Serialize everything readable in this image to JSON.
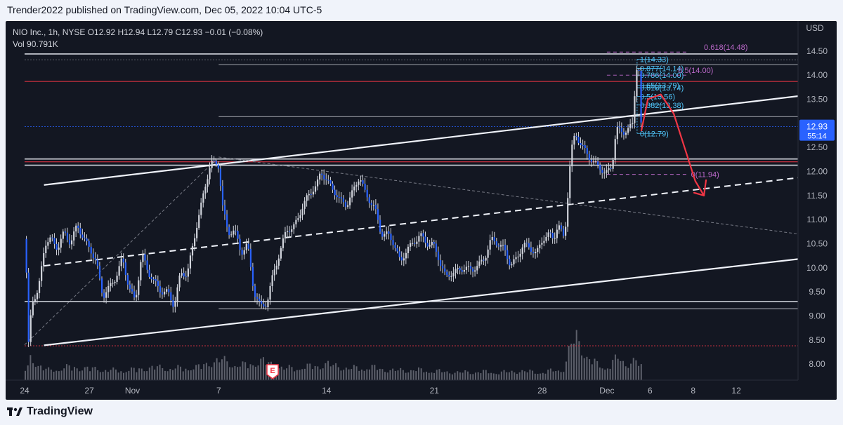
{
  "header": {
    "published": "Trender2022 published on TradingView.com, Dec 05, 2022 10:04 UTC-5"
  },
  "legend": {
    "o": "O12.92",
    "h": "H12.94",
    "l": "L12.79",
    "c": "C12.93",
    "chg": "−0.01 (−0.08%)",
    "vol_label": "Vol",
    "vol_value": "90.791K"
  },
  "footer": {
    "brand": "TradingView"
  },
  "colors": {
    "background": "#131722",
    "candle": "#d1d4dc",
    "blue_candle": "#2962ff",
    "red_level": "#f23645",
    "cyan_fib": "#4fc3f7",
    "violet_fib": "#ba68c8",
    "arrow": "#f23645",
    "price_tag": "#2962ff"
  },
  "chart_data": {
    "type": "candlestick",
    "title": "NIO Inc., 1h, NYSE",
    "ylabel": "USD",
    "ylim": [
      7.9,
      14.6
    ],
    "yticks": [
      "8.00",
      "8.50",
      "9.00",
      "9.50",
      "10.00",
      "10.50",
      "11.00",
      "11.50",
      "12.00",
      "12.50",
      "13.00",
      "13.50",
      "14.00",
      "14.50"
    ],
    "xlim": [
      0,
      45
    ],
    "xticks": [
      {
        "x": 0,
        "label": "24"
      },
      {
        "x": 3,
        "label": "27"
      },
      {
        "x": 5,
        "label": "Nov"
      },
      {
        "x": 9,
        "label": "7"
      },
      {
        "x": 14,
        "label": "14"
      },
      {
        "x": 19,
        "label": "21"
      },
      {
        "x": 24,
        "label": "28"
      },
      {
        "x": 27,
        "label": "Dec"
      },
      {
        "x": 29,
        "label": "6"
      },
      {
        "x": 31,
        "label": "8"
      },
      {
        "x": 33,
        "label": "12"
      }
    ],
    "current_price": "12.93",
    "countdown": "55:14",
    "close_path": [
      [
        0.0,
        10.6
      ],
      [
        0.15,
        8.4
      ],
      [
        0.3,
        9.3
      ],
      [
        0.6,
        9.5
      ],
      [
        0.9,
        10.5
      ],
      [
        1.2,
        10.6
      ],
      [
        1.5,
        10.4
      ],
      [
        1.8,
        10.75
      ],
      [
        2.1,
        10.5
      ],
      [
        2.4,
        10.9
      ],
      [
        2.7,
        10.6
      ],
      [
        3.0,
        10.4
      ],
      [
        3.3,
        10.1
      ],
      [
        3.6,
        9.4
      ],
      [
        3.9,
        9.6
      ],
      [
        4.2,
        9.8
      ],
      [
        4.5,
        10.2
      ],
      [
        4.8,
        9.6
      ],
      [
        5.1,
        9.3
      ],
      [
        5.4,
        10.3
      ],
      [
        5.7,
        9.9
      ],
      [
        6.0,
        9.7
      ],
      [
        6.3,
        9.5
      ],
      [
        6.6,
        9.5
      ],
      [
        6.9,
        9.2
      ],
      [
        7.2,
        9.9
      ],
      [
        7.5,
        9.85
      ],
      [
        8.0,
        11.0
      ],
      [
        8.3,
        11.6
      ],
      [
        8.6,
        12.2
      ],
      [
        9.0,
        12.1
      ],
      [
        9.1,
        11.4
      ],
      [
        9.4,
        10.7
      ],
      [
        9.7,
        10.8
      ],
      [
        10.0,
        10.3
      ],
      [
        10.3,
        10.5
      ],
      [
        10.6,
        9.5
      ],
      [
        10.9,
        9.2
      ],
      [
        11.2,
        9.25
      ],
      [
        11.5,
        9.9
      ],
      [
        11.8,
        10.3
      ],
      [
        12.1,
        10.8
      ],
      [
        12.4,
        10.8
      ],
      [
        12.8,
        11.2
      ],
      [
        13.1,
        11.5
      ],
      [
        13.5,
        11.7
      ],
      [
        13.7,
        12.0
      ],
      [
        14.0,
        11.8
      ],
      [
        14.3,
        11.6
      ],
      [
        14.6,
        11.4
      ],
      [
        14.9,
        11.3
      ],
      [
        15.2,
        11.6
      ],
      [
        15.5,
        11.9
      ],
      [
        15.8,
        11.5
      ],
      [
        16.2,
        11.25
      ],
      [
        16.5,
        10.7
      ],
      [
        16.8,
        10.7
      ],
      [
        17.1,
        10.5
      ],
      [
        17.4,
        10.1
      ],
      [
        17.7,
        10.4
      ],
      [
        18.0,
        10.5
      ],
      [
        18.3,
        10.7
      ],
      [
        18.6,
        10.5
      ],
      [
        18.9,
        10.5
      ],
      [
        19.2,
        10.15
      ],
      [
        19.5,
        9.8
      ],
      [
        19.8,
        9.9
      ],
      [
        20.1,
        9.95
      ],
      [
        20.4,
        10.0
      ],
      [
        20.7,
        9.95
      ],
      [
        21.0,
        10.05
      ],
      [
        21.3,
        10.2
      ],
      [
        21.6,
        10.6
      ],
      [
        21.9,
        10.5
      ],
      [
        22.2,
        10.4
      ],
      [
        22.5,
        10.05
      ],
      [
        22.8,
        10.2
      ],
      [
        23.1,
        10.5
      ],
      [
        23.4,
        10.4
      ],
      [
        23.7,
        10.3
      ],
      [
        24.0,
        10.6
      ],
      [
        24.3,
        10.7
      ],
      [
        24.5,
        10.6
      ],
      [
        24.7,
        10.9
      ],
      [
        25.0,
        10.6
      ],
      [
        25.3,
        12.4
      ],
      [
        25.5,
        12.8
      ],
      [
        25.7,
        12.6
      ],
      [
        26.0,
        12.4
      ],
      [
        26.3,
        12.2
      ],
      [
        26.6,
        12.1
      ],
      [
        26.9,
        11.95
      ],
      [
        27.2,
        12.1
      ],
      [
        27.4,
        12.9
      ],
      [
        27.7,
        12.8
      ],
      [
        28.0,
        12.9
      ],
      [
        28.2,
        13.0
      ],
      [
        28.3,
        14.2
      ],
      [
        28.45,
        14.1
      ],
      [
        28.5,
        13.0
      ],
      [
        28.6,
        12.93
      ]
    ],
    "volume_path": [
      [
        0.2,
        0.35
      ],
      [
        1.0,
        0.15
      ],
      [
        2.0,
        0.2
      ],
      [
        3.0,
        0.18
      ],
      [
        4.0,
        0.15
      ],
      [
        5.0,
        0.16
      ],
      [
        6.0,
        0.2
      ],
      [
        7.0,
        0.18
      ],
      [
        8.0,
        0.2
      ],
      [
        9.0,
        0.32
      ],
      [
        10.0,
        0.22
      ],
      [
        11.0,
        0.3
      ],
      [
        12.0,
        0.18
      ],
      [
        13.0,
        0.2
      ],
      [
        14.0,
        0.25
      ],
      [
        15.0,
        0.18
      ],
      [
        16.0,
        0.2
      ],
      [
        17.0,
        0.15
      ],
      [
        18.0,
        0.16
      ],
      [
        19.0,
        0.14
      ],
      [
        20.0,
        0.12
      ],
      [
        21.0,
        0.13
      ],
      [
        22.0,
        0.12
      ],
      [
        23.0,
        0.14
      ],
      [
        24.0,
        0.12
      ],
      [
        25.0,
        0.18
      ],
      [
        25.3,
        0.55
      ],
      [
        25.6,
        0.7
      ],
      [
        26.0,
        0.35
      ],
      [
        26.5,
        0.25
      ],
      [
        27.0,
        0.2
      ],
      [
        27.5,
        0.35
      ],
      [
        28.0,
        0.25
      ],
      [
        28.3,
        0.3
      ],
      [
        28.6,
        0.2
      ]
    ],
    "horizontal_levels": [
      {
        "y": 14.44,
        "color": "#d1d4dc",
        "x1": 0,
        "width": 1.6
      },
      {
        "y": 14.32,
        "color": "#787b86",
        "x1": 0,
        "width": 0.8,
        "dash": "2,2"
      },
      {
        "y": 14.22,
        "color": "#d1d4dc",
        "x1": 9.0,
        "width": 0.8
      },
      {
        "y": 13.87,
        "color": "#f23645",
        "x1": 0,
        "width": 1.0
      },
      {
        "y": 13.14,
        "color": "#d1d4dc",
        "x1": 9.0,
        "width": 0.8
      },
      {
        "y": 12.93,
        "color": "#2962ff",
        "x1": 0,
        "width": 0.8,
        "dash": "2,2"
      },
      {
        "y": 12.26,
        "color": "#d1d4dc",
        "x1": 0,
        "width": 1.6
      },
      {
        "y": 12.2,
        "color": "#f23645",
        "x1": 0,
        "width": 1.0
      },
      {
        "y": 12.13,
        "color": "#d1d4dc",
        "x1": 0,
        "width": 1.6
      },
      {
        "y": 9.3,
        "color": "#d1d4dc",
        "x1": 0,
        "width": 1.6
      },
      {
        "y": 9.15,
        "color": "#d1d4dc",
        "x1": 9.0,
        "width": 0.8
      },
      {
        "y": 8.38,
        "color": "#f23645",
        "x1": 0,
        "width": 0.8,
        "dash": "2,2"
      }
    ],
    "trend_lines": [
      {
        "x1": 0.9,
        "y1": 11.72,
        "x2": 46.0,
        "y2": 14.1,
        "style": "solid"
      },
      {
        "x1": 0.9,
        "y1": 10.04,
        "x2": 46.0,
        "y2": 12.4,
        "style": "dashed"
      },
      {
        "x1": 0.9,
        "y1": 8.39,
        "x2": 46.0,
        "y2": 10.7,
        "style": "solid"
      },
      {
        "x1": 0.0,
        "y1": 8.4,
        "x2": 9.0,
        "y2": 12.3,
        "style": "thin-dashed"
      },
      {
        "x1": 9.0,
        "y1": 12.3,
        "x2": 46.0,
        "y2": 10.1,
        "style": "thin-dashed"
      }
    ],
    "fib_cyan": {
      "x1": 28.4,
      "x2": 29.6,
      "levels": [
        {
          "y": 14.33,
          "label": "1(14.33)"
        },
        {
          "y": 14.14,
          "label": "0.877(14.14)"
        },
        {
          "y": 14.0,
          "label": "0.786(14.00)"
        },
        {
          "y": 13.79,
          "label": "0.65(13.79)"
        },
        {
          "y": 13.74,
          "label": "0.618(13.74)"
        },
        {
          "y": 13.56,
          "label": "0.5(13.56)"
        },
        {
          "y": 13.38,
          "label": "0.382(13.38)"
        },
        {
          "y": 12.79,
          "label": "0(12.79)"
        }
      ]
    },
    "fib_violet": {
      "x1": 27.0,
      "x2": 30.8,
      "levels": [
        {
          "y": 14.48,
          "label": "0.618(14.48)"
        },
        {
          "y": 14.0,
          "label": "0.5(14.00)"
        },
        {
          "y": 11.94,
          "label": "0(11.94)"
        }
      ]
    },
    "earnings_marker": {
      "x": 11.5,
      "label": "E"
    },
    "projection_arrow": [
      [
        28.6,
        12.85
      ],
      [
        28.9,
        13.5
      ],
      [
        29.5,
        13.6
      ],
      [
        30.1,
        13.2
      ],
      [
        30.6,
        12.5
      ],
      [
        31.1,
        11.8
      ],
      [
        31.5,
        11.5
      ]
    ]
  }
}
